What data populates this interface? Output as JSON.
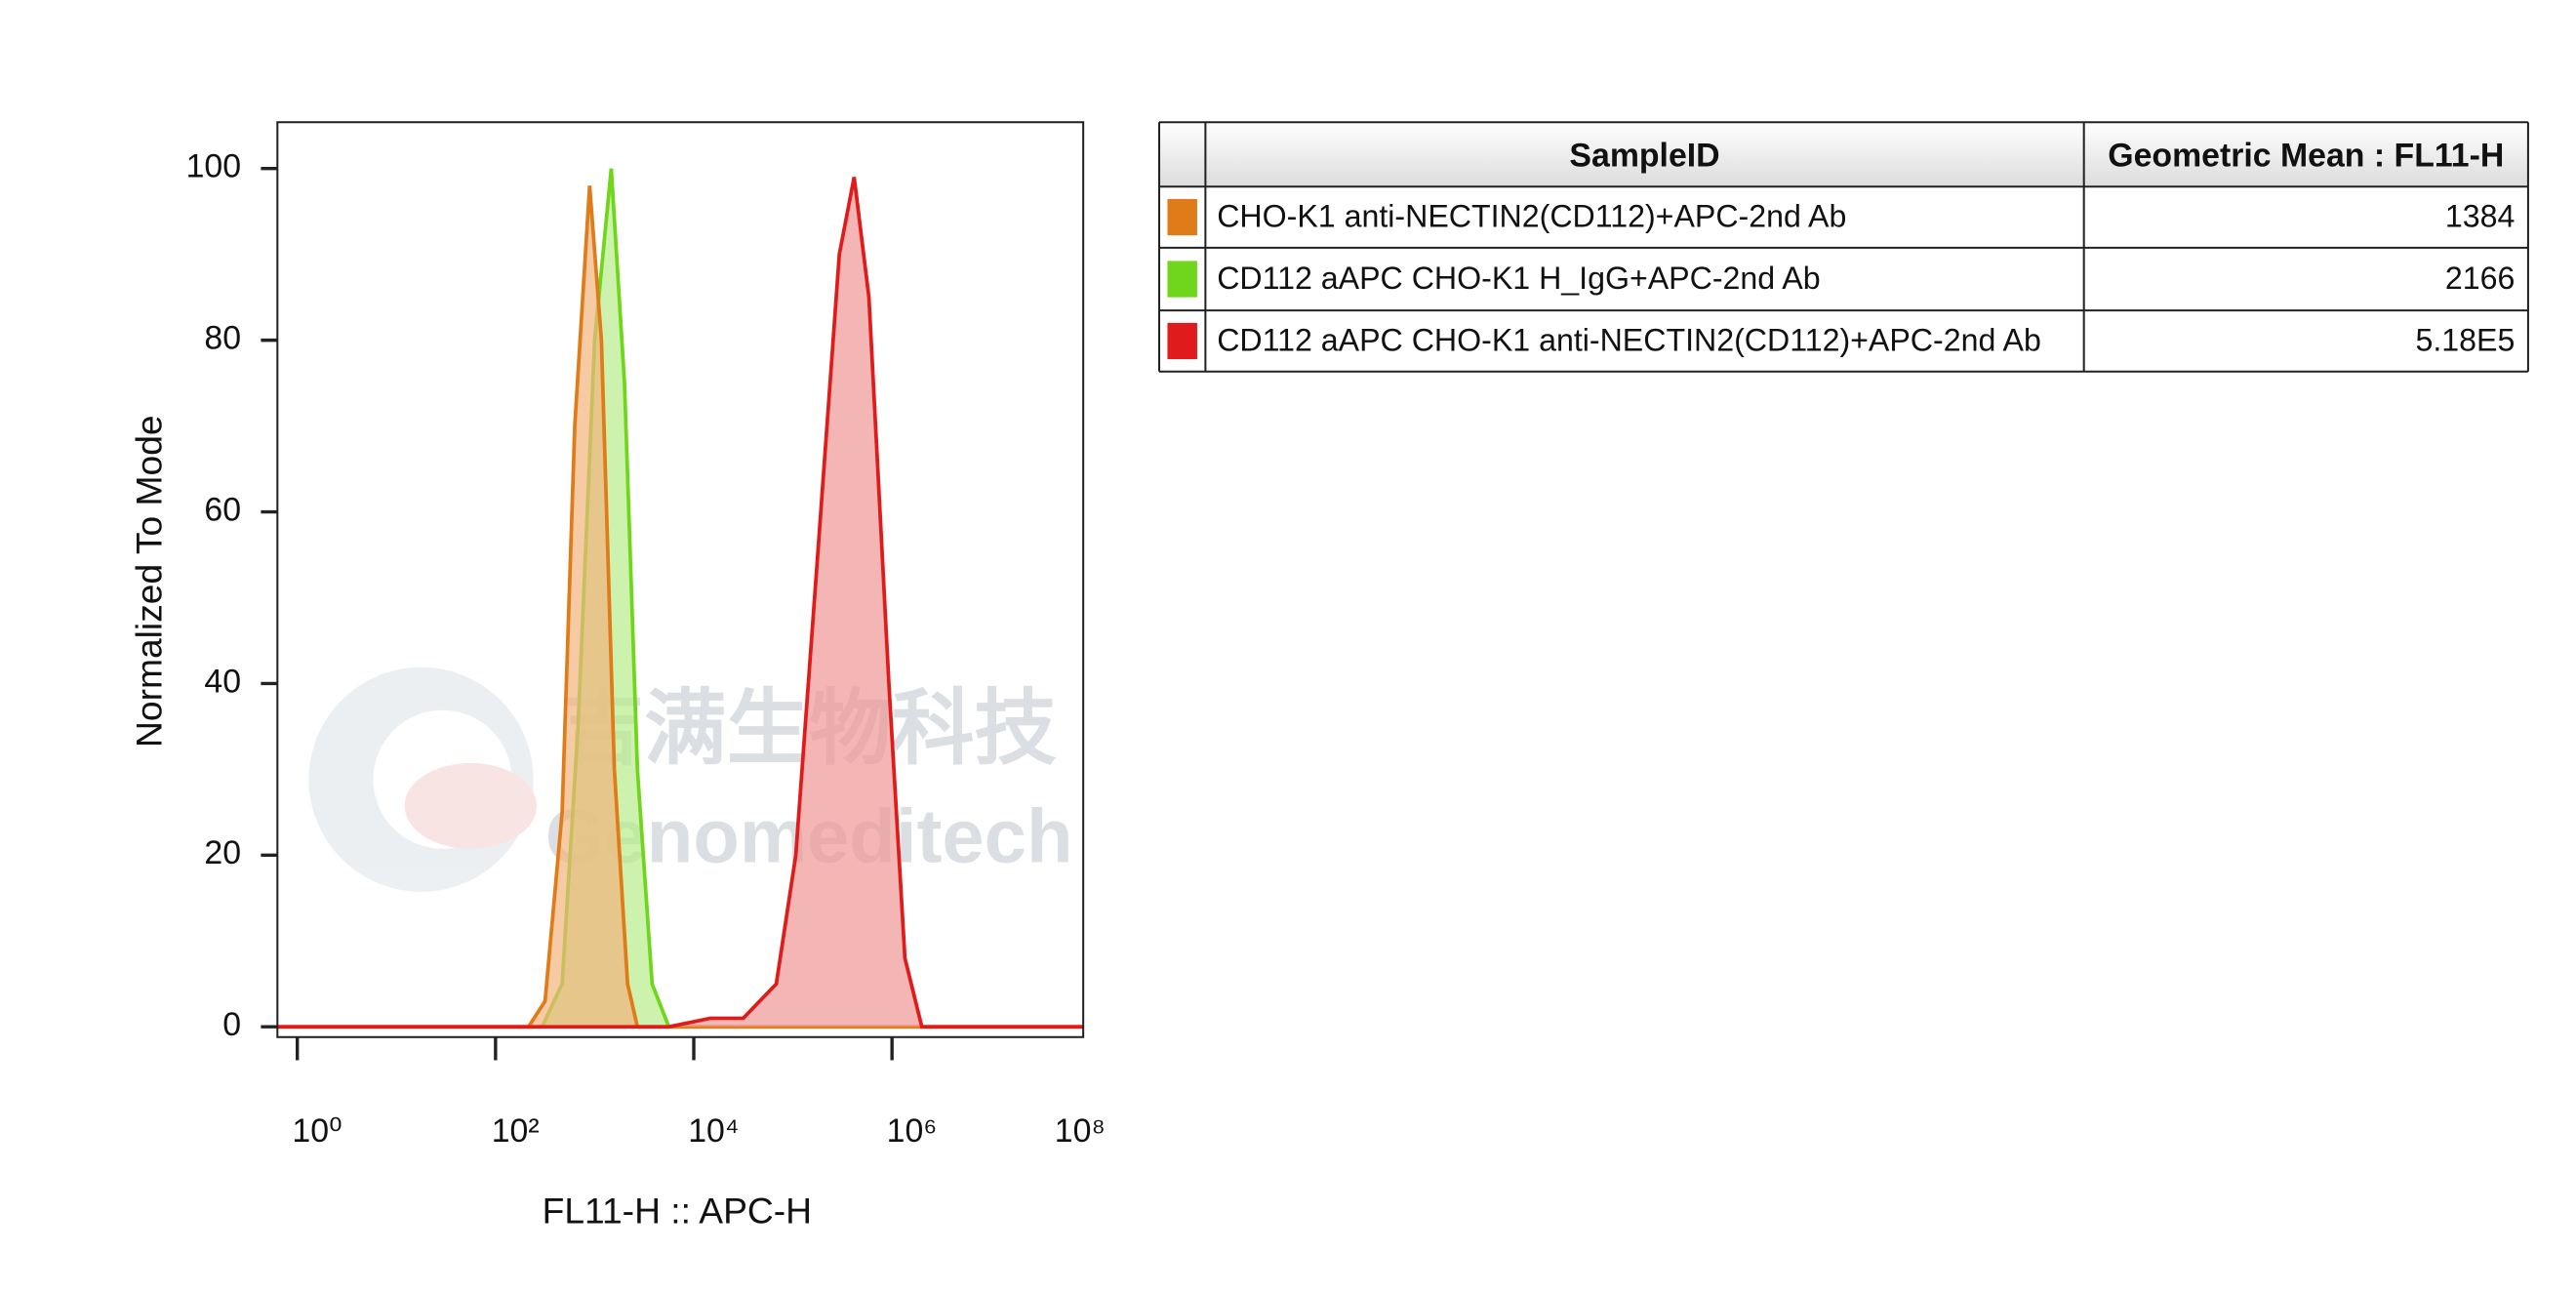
{
  "chart_data": {
    "type": "histogram_overlay",
    "xlabel": "FL11-H :: APC-H",
    "ylabel": "Normalized To Mode",
    "log_x": true,
    "xlim": [
      0.63,
      85000000
    ],
    "xticks": [
      {
        "value": 1,
        "label": "10⁰"
      },
      {
        "value": 100,
        "label": "10²"
      },
      {
        "value": 10000,
        "label": "10⁴"
      },
      {
        "value": 1000000,
        "label": "10⁶"
      },
      {
        "value": 100000000,
        "label": "10⁸"
      }
    ],
    "ylim": [
      -1.2,
      105.4
    ],
    "yticks": [
      0,
      20,
      40,
      60,
      80,
      100
    ],
    "series": [
      {
        "name": "CD112 aAPC CHO-K1 H_IgG+APC-2nd Ab",
        "color": "#6fd61c",
        "fill": "#b6ec8a",
        "x": [
          0.63,
          295,
          470,
          680,
          1000,
          1470,
          2000,
          2700,
          3800,
          5600,
          85000000
        ],
        "values": [
          0,
          0,
          5,
          35,
          80,
          100,
          75,
          30,
          5,
          0,
          0
        ]
      },
      {
        "name": "CHO-K1 anti-NECTIN2(CD112)+APC-2nd Ab",
        "color": "#e07b1a",
        "fill": "#f2b47c",
        "x": [
          0.63,
          215,
          316,
          470,
          630,
          890,
          1170,
          1580,
          2150,
          2700,
          85000000
        ],
        "values": [
          0,
          0,
          3,
          25,
          70,
          98,
          80,
          30,
          5,
          0,
          0
        ]
      },
      {
        "name": "CD112 aAPC CHO-K1 anti-NECTIN2(CD112)+APC-2nd Ab",
        "color": "#e01b1b",
        "fill": "#f09595",
        "x": [
          0.63,
          5600,
          14700,
          31600,
          68000,
          107000,
          178000,
          294000,
          415000,
          585000,
          930000,
          1350000,
          2000000,
          85000000
        ],
        "values": [
          0,
          0,
          1,
          1,
          5,
          20,
          55,
          90,
          99,
          85,
          40,
          8,
          0,
          0
        ]
      }
    ]
  },
  "table": {
    "header": [
      "SampleID",
      "Geometric Mean : FL11-H"
    ],
    "rows": [
      {
        "color": "#e07b1a",
        "sample": "CHO-K1 anti-NECTIN2(CD112)+APC-2nd Ab",
        "mean": "1384"
      },
      {
        "color": "#6fd61c",
        "sample": "CD112 aAPC CHO-K1 H_IgG+APC-2nd Ab",
        "mean": "2166"
      },
      {
        "color": "#e01b1b",
        "sample": "CD112 aAPC CHO-K1 anti-NECTIN2(CD112)+APC-2nd Ab",
        "mean": "5.18E5"
      }
    ]
  },
  "watermark": {
    "cn": "吉满生物科技",
    "en": "Genomeditech"
  }
}
